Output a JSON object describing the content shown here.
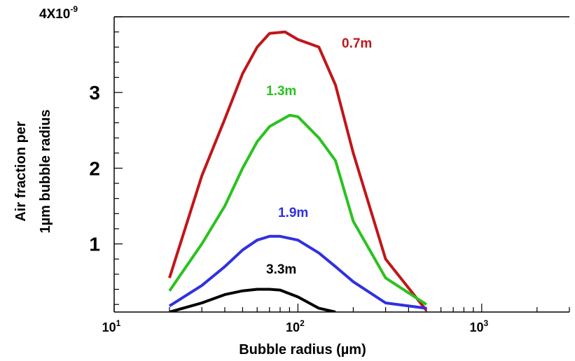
{
  "chart_data": {
    "type": "line",
    "xlabel": "Bubble radius (µm)",
    "ylabel": [
      "Air fraction per",
      "1µm bubble radius"
    ],
    "x_scale": "log",
    "xlim": [
      10,
      3000
    ],
    "ylim": [
      1e-10,
      4e-09
    ],
    "x_ticks": [
      {
        "value": 10,
        "base": "10",
        "exp": "1"
      },
      {
        "value": 100,
        "base": "10",
        "exp": "2"
      },
      {
        "value": 1000,
        "base": "10",
        "exp": "3"
      }
    ],
    "y_ticks": [
      {
        "value": 1e-09,
        "label": "1"
      },
      {
        "value": 2e-09,
        "label": "2"
      },
      {
        "value": 3e-09,
        "label": "3"
      },
      {
        "value": 4e-09,
        "label": "4X10",
        "exp": "-9"
      }
    ],
    "series": [
      {
        "name": "0.7m",
        "color": "#c0161a",
        "x": [
          20,
          30,
          40,
          50,
          60,
          70,
          85,
          100,
          130,
          160,
          200,
          300,
          500
        ],
        "y": [
          5.5e-10,
          1.9e-09,
          2.65e-09,
          3.25e-09,
          3.6e-09,
          3.78e-09,
          3.8e-09,
          3.7e-09,
          3.6e-09,
          3.1e-09,
          2.2e-09,
          8e-10,
          1.2e-10
        ]
      },
      {
        "name": "1.3m",
        "color": "#2ac21f",
        "x": [
          20,
          30,
          40,
          50,
          60,
          70,
          90,
          100,
          130,
          160,
          200,
          300,
          500
        ],
        "y": [
          3.8e-10,
          1e-09,
          1.5e-09,
          2e-09,
          2.35e-09,
          2.55e-09,
          2.7e-09,
          2.68e-09,
          2.4e-09,
          2.1e-09,
          1.3e-09,
          5.5e-10,
          2e-10
        ]
      },
      {
        "name": "1.9m",
        "color": "#3030e0",
        "x": [
          20,
          30,
          40,
          50,
          60,
          70,
          80,
          100,
          130,
          160,
          200,
          300,
          500
        ],
        "y": [
          1.8e-10,
          4.5e-10,
          7e-10,
          9.2e-10,
          1.05e-09,
          1.1e-09,
          1.1e-09,
          1.05e-09,
          8.8e-10,
          7e-10,
          5e-10,
          2.2e-10,
          1.5e-10
        ]
      },
      {
        "name": "3.3m",
        "color": "#000000",
        "x": [
          20,
          30,
          40,
          50,
          60,
          70,
          80,
          100,
          130,
          160
        ],
        "y": [
          1e-10,
          2.2e-10,
          3.3e-10,
          3.8e-10,
          4e-10,
          4e-10,
          3.9e-10,
          3e-10,
          1.5e-10,
          1e-10
        ]
      }
    ],
    "grid": false,
    "legend": "none"
  }
}
